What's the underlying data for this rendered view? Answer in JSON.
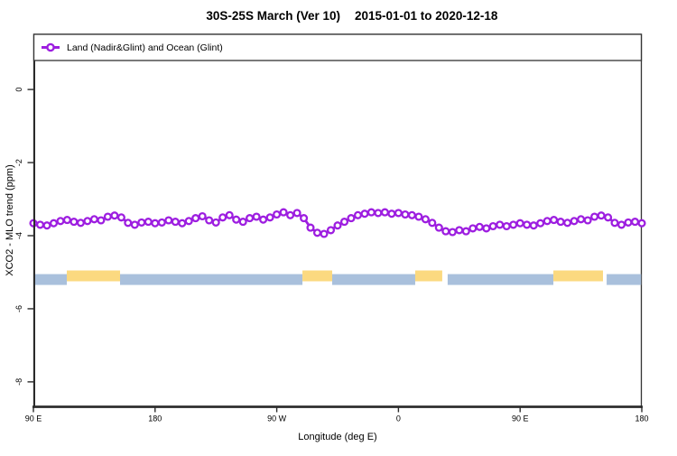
{
  "chart_data": {
    "type": "line",
    "title": "30S-25S March (Ver 10)   2015-01-01 to 2020-12-18",
    "title_left": "30S-25S March (Ver 10)",
    "title_right": "2015-01-01 to 2020-12-18",
    "xlabel": "Longitude (deg E)",
    "ylabel": "XCO2 - MLO trend (ppm)",
    "xlim": [
      90,
      540
    ],
    "ylim": [
      -8.67,
      1.51
    ],
    "grid": false,
    "legend_position": "top-left-full-width",
    "x_tick_labels": [
      "90 E",
      "180",
      "90 W",
      "0",
      "90 E",
      "180"
    ],
    "x_tick_values": [
      90,
      180,
      270,
      360,
      450,
      540
    ],
    "y_tick_labels": [
      "0",
      "-2",
      "-4",
      "-6",
      "-8"
    ],
    "y_tick_values": [
      0,
      -2,
      -4,
      -6,
      -8
    ],
    "series": [
      {
        "name": "Land (Nadir&Glint) and Ocean (Glint)",
        "color": "#9D1EE0",
        "marker": "open-circle",
        "x": [
          90,
          95,
          100,
          105,
          110,
          115,
          120,
          125,
          130,
          135,
          140,
          145,
          150,
          155,
          160,
          165,
          170,
          175,
          180,
          185,
          190,
          195,
          200,
          205,
          210,
          215,
          220,
          225,
          230,
          235,
          240,
          245,
          250,
          255,
          260,
          265,
          270,
          275,
          280,
          285,
          290,
          295,
          300,
          305,
          310,
          315,
          320,
          325,
          330,
          335,
          340,
          345,
          350,
          355,
          360,
          365,
          370,
          375,
          380,
          385,
          390,
          395,
          400,
          405,
          410,
          415,
          420,
          425,
          430,
          435,
          440,
          445,
          450,
          455,
          460,
          465,
          470,
          475,
          480,
          485,
          490,
          495,
          500,
          505,
          510,
          515,
          520,
          525,
          530,
          535,
          540
        ],
        "y": [
          -3.66,
          -3.7,
          -3.72,
          -3.66,
          -3.6,
          -3.57,
          -3.62,
          -3.65,
          -3.6,
          -3.55,
          -3.58,
          -3.48,
          -3.45,
          -3.5,
          -3.65,
          -3.7,
          -3.64,
          -3.62,
          -3.66,
          -3.64,
          -3.58,
          -3.62,
          -3.66,
          -3.6,
          -3.52,
          -3.47,
          -3.58,
          -3.64,
          -3.5,
          -3.44,
          -3.56,
          -3.62,
          -3.52,
          -3.48,
          -3.56,
          -3.5,
          -3.42,
          -3.36,
          -3.44,
          -3.38,
          -3.52,
          -3.78,
          -3.92,
          -3.95,
          -3.85,
          -3.72,
          -3.62,
          -3.52,
          -3.44,
          -3.4,
          -3.36,
          -3.38,
          -3.36,
          -3.4,
          -3.38,
          -3.42,
          -3.44,
          -3.48,
          -3.55,
          -3.65,
          -3.78,
          -3.88,
          -3.9,
          -3.85,
          -3.88,
          -3.8,
          -3.76,
          -3.8,
          -3.74,
          -3.7,
          -3.74,
          -3.7,
          -3.66,
          -3.7,
          -3.72,
          -3.66,
          -3.6,
          -3.57,
          -3.62,
          -3.65,
          -3.6,
          -3.55,
          -3.58,
          -3.48,
          -3.45,
          -3.5,
          -3.65,
          -3.7,
          -3.64,
          -3.62,
          -3.66
        ]
      }
    ],
    "surface_band": {
      "description": "horizontal land/ocean indicator band",
      "land_color": "#FBD980",
      "ocean_color": "#A9C0DC",
      "land_level_ppm": -5.1,
      "ocean_level_ppm": -5.2,
      "thickness_ppm": 0.3,
      "segments": [
        {
          "type": "ocean",
          "lon_start": 90,
          "lon_end": 114.7
        },
        {
          "type": "land",
          "lon_start": 114.7,
          "lon_end": 154.1
        },
        {
          "type": "ocean",
          "lon_start": 154.1,
          "lon_end": 289.0
        },
        {
          "type": "land",
          "lon_start": 289.0,
          "lon_end": 311.0
        },
        {
          "type": "ocean",
          "lon_start": 311.0,
          "lon_end": 372.4
        },
        {
          "type": "land",
          "lon_start": 372.4,
          "lon_end": 392.4
        },
        {
          "type": "ocean",
          "lon_start": 396.4,
          "lon_end": 474.6
        },
        {
          "type": "land",
          "lon_start": 474.6,
          "lon_end": 511.3
        },
        {
          "type": "ocean",
          "lon_start": 514.0,
          "lon_end": 539.5
        }
      ]
    },
    "legend_entries": [
      {
        "label": "Land (Nadir&Glint) and Ocean (Glint)",
        "color": "#9D1EE0",
        "marker": "open-circle-on-line"
      }
    ]
  },
  "colors": {
    "series_purple": "#9D1EE0",
    "band_land_yellow": "#FBD980",
    "band_ocean_blue": "#A9C0DC",
    "axis": "#2b2b2b",
    "box": "#333333",
    "background": "#ffffff"
  }
}
